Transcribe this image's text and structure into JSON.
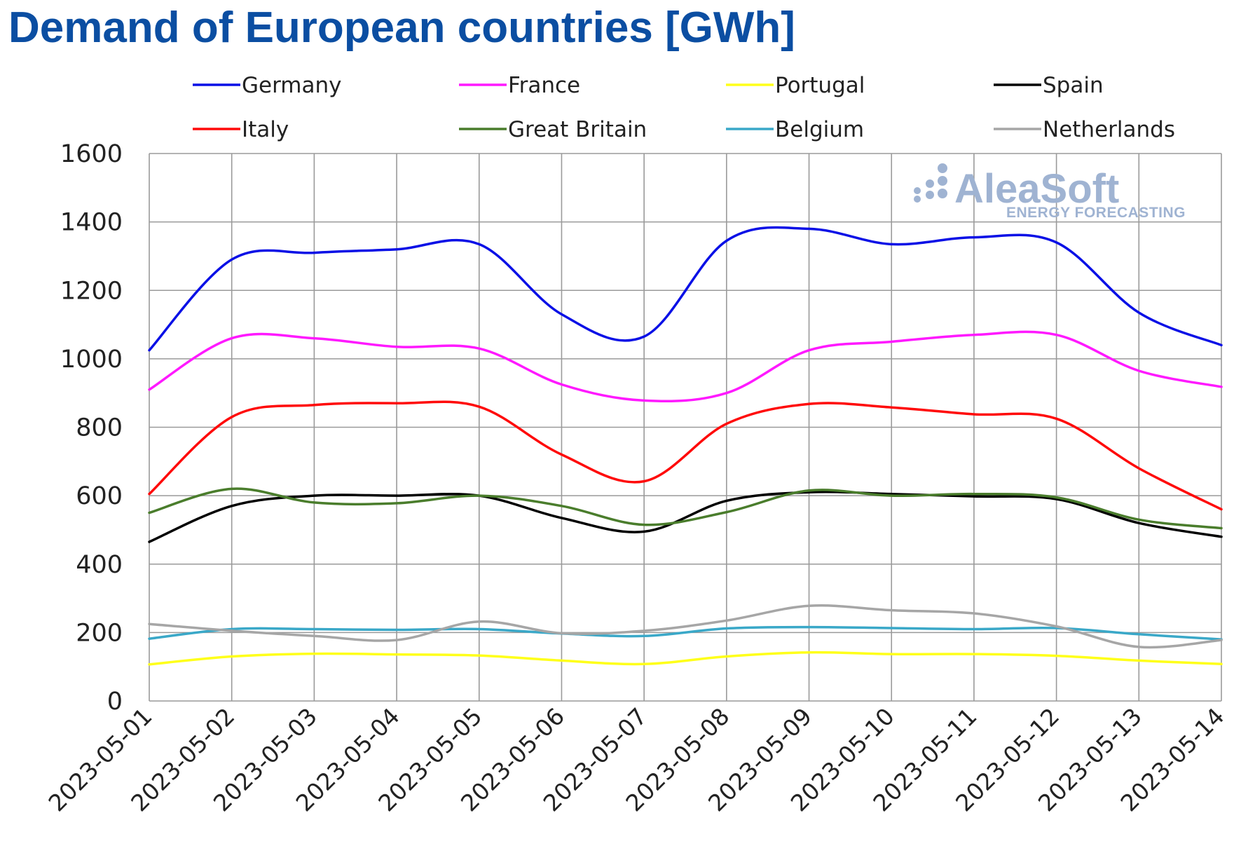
{
  "title": "Demand of European countries [GWh]",
  "watermark": {
    "name": "AleaSoft",
    "tagline": "ENERGY FORECASTING",
    "icon": "aleasoft-dots-icon",
    "color": "#9fb3d2"
  },
  "chart_data": {
    "type": "line",
    "title": "Demand of European countries [GWh]",
    "xlabel": "",
    "ylabel": "",
    "ylim": [
      0,
      1600
    ],
    "yticks": [
      0,
      200,
      400,
      600,
      800,
      1000,
      1200,
      1400,
      1600
    ],
    "grid": true,
    "legend_position": "top",
    "categories": [
      "2023-05-01",
      "2023-05-02",
      "2023-05-03",
      "2023-05-04",
      "2023-05-05",
      "2023-05-06",
      "2023-05-07",
      "2023-05-08",
      "2023-05-09",
      "2023-05-10",
      "2023-05-11",
      "2023-05-12",
      "2023-05-13",
      "2023-05-14"
    ],
    "series": [
      {
        "name": "Germany",
        "color": "#0a10e6",
        "values": [
          1025,
          1290,
          1310,
          1320,
          1335,
          1130,
          1065,
          1345,
          1380,
          1335,
          1355,
          1340,
          1135,
          1040
        ]
      },
      {
        "name": "France",
        "color": "#ff19ff",
        "values": [
          910,
          1060,
          1060,
          1035,
          1030,
          925,
          878,
          900,
          1025,
          1050,
          1070,
          1070,
          965,
          918
        ]
      },
      {
        "name": "Portugal",
        "color": "#ffff1a",
        "values": [
          107,
          130,
          138,
          136,
          133,
          118,
          108,
          130,
          142,
          137,
          137,
          132,
          118,
          108
        ]
      },
      {
        "name": "Spain",
        "color": "#000000",
        "values": [
          465,
          570,
          600,
          600,
          600,
          535,
          495,
          585,
          610,
          605,
          598,
          590,
          520,
          480
        ]
      },
      {
        "name": "Italy",
        "color": "#ff0a0a",
        "values": [
          605,
          830,
          865,
          870,
          860,
          720,
          642,
          810,
          868,
          858,
          838,
          825,
          680,
          560
        ]
      },
      {
        "name": "Great Britain",
        "color": "#4a7d2c",
        "values": [
          550,
          620,
          580,
          578,
          600,
          570,
          515,
          552,
          615,
          600,
          605,
          595,
          530,
          505
        ]
      },
      {
        "name": "Belgium",
        "color": "#3aa8c8",
        "values": [
          182,
          210,
          210,
          208,
          210,
          197,
          190,
          212,
          216,
          213,
          210,
          213,
          195,
          180
        ]
      },
      {
        "name": "Netherlands",
        "color": "#a6a6a6",
        "values": [
          225,
          205,
          190,
          178,
          232,
          198,
          205,
          235,
          278,
          265,
          256,
          218,
          158,
          178
        ]
      }
    ]
  }
}
